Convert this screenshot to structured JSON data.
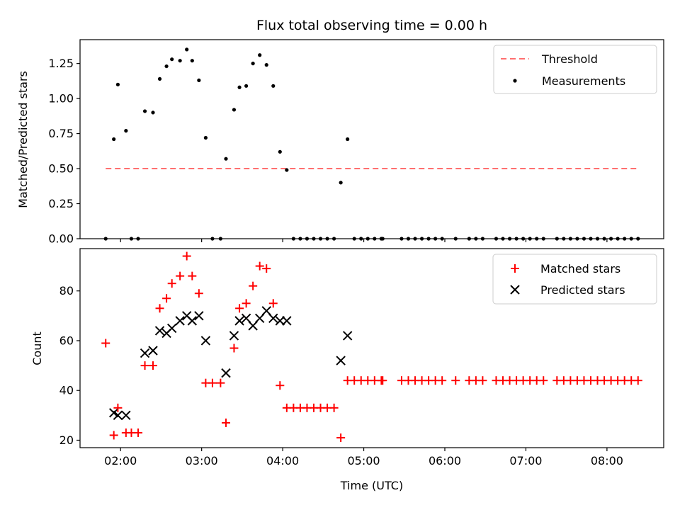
{
  "chart_data": [
    {
      "type": "scatter",
      "title": "Flux total observing time = 0.00 h",
      "xlabel": "",
      "ylabel": "Matched/Predicted stars",
      "xlim": [
        "01:30",
        "08:42"
      ],
      "ylim": [
        0,
        1.42
      ],
      "yticks": [
        "0.00",
        "0.25",
        "0.50",
        "0.75",
        "1.00",
        "1.25"
      ],
      "legend": {
        "position": "top-right",
        "entries": [
          "Threshold",
          "Measurements"
        ]
      },
      "colors": {
        "threshold": "#ff7070",
        "measurements": "#000000"
      },
      "threshold": {
        "name": "Threshold",
        "y": 0.5,
        "x_start": "01:49",
        "x_end": "08:24"
      },
      "series": [
        {
          "name": "Measurements",
          "points": [
            [
              "01:49",
              0.0
            ],
            [
              "01:55",
              0.71
            ],
            [
              "01:58",
              1.1
            ],
            [
              "02:04",
              0.77
            ],
            [
              "02:08",
              0.0
            ],
            [
              "02:13",
              0.0
            ],
            [
              "02:18",
              0.91
            ],
            [
              "02:24",
              0.9
            ],
            [
              "02:29",
              1.14
            ],
            [
              "02:34",
              1.23
            ],
            [
              "02:38",
              1.28
            ],
            [
              "02:44",
              1.27
            ],
            [
              "02:49",
              1.35
            ],
            [
              "02:53",
              1.27
            ],
            [
              "02:58",
              1.13
            ],
            [
              "03:03",
              0.72
            ],
            [
              "03:08",
              0.0
            ],
            [
              "03:14",
              0.0
            ],
            [
              "03:18",
              0.57
            ],
            [
              "03:24",
              0.92
            ],
            [
              "03:28",
              1.08
            ],
            [
              "03:33",
              1.09
            ],
            [
              "03:38",
              1.25
            ],
            [
              "03:43",
              1.31
            ],
            [
              "03:48",
              1.24
            ],
            [
              "03:53",
              1.09
            ],
            [
              "03:58",
              0.62
            ],
            [
              "04:03",
              0.49
            ],
            [
              "04:08",
              0.0
            ],
            [
              "04:13",
              0.0
            ],
            [
              "04:18",
              0.0
            ],
            [
              "04:23",
              0.0
            ],
            [
              "04:28",
              0.0
            ],
            [
              "04:33",
              0.0
            ],
            [
              "04:38",
              0.0
            ],
            [
              "04:43",
              0.4
            ],
            [
              "04:48",
              0.71
            ],
            [
              "04:53",
              0.0
            ],
            [
              "04:58",
              0.0
            ],
            [
              "05:03",
              0.0
            ],
            [
              "05:08",
              0.0
            ],
            [
              "05:13",
              0.0
            ],
            [
              "05:14",
              0.0
            ],
            [
              "05:28",
              0.0
            ],
            [
              "05:33",
              0.0
            ],
            [
              "05:38",
              0.0
            ],
            [
              "05:43",
              0.0
            ],
            [
              "05:48",
              0.0
            ],
            [
              "05:53",
              0.0
            ],
            [
              "05:58",
              0.0
            ],
            [
              "06:08",
              0.0
            ],
            [
              "06:18",
              0.0
            ],
            [
              "06:23",
              0.0
            ],
            [
              "06:28",
              0.0
            ],
            [
              "06:38",
              0.0
            ],
            [
              "06:43",
              0.0
            ],
            [
              "06:48",
              0.0
            ],
            [
              "06:53",
              0.0
            ],
            [
              "06:58",
              0.0
            ],
            [
              "07:03",
              0.0
            ],
            [
              "07:08",
              0.0
            ],
            [
              "07:13",
              0.0
            ],
            [
              "07:23",
              0.0
            ],
            [
              "07:28",
              0.0
            ],
            [
              "07:33",
              0.0
            ],
            [
              "07:38",
              0.0
            ],
            [
              "07:43",
              0.0
            ],
            [
              "07:48",
              0.0
            ],
            [
              "07:53",
              0.0
            ],
            [
              "07:58",
              0.0
            ],
            [
              "08:03",
              0.0
            ],
            [
              "08:08",
              0.0
            ],
            [
              "08:13",
              0.0
            ],
            [
              "08:18",
              0.0
            ],
            [
              "08:23",
              0.0
            ]
          ]
        }
      ]
    },
    {
      "type": "scatter",
      "title": "",
      "xlabel": "Time (UTC)",
      "ylabel": "Count",
      "xlim": [
        "01:30",
        "08:42"
      ],
      "ylim": [
        17,
        97
      ],
      "yticks": [
        "20",
        "40",
        "60",
        "80"
      ],
      "xticks": [
        "02:00",
        "03:00",
        "04:00",
        "05:00",
        "06:00",
        "07:00",
        "08:00"
      ],
      "legend": {
        "position": "top-right",
        "entries": [
          "Matched stars",
          "Predicted stars"
        ]
      },
      "colors": {
        "matched": "#ff0000",
        "predicted": "#000000"
      },
      "series": [
        {
          "name": "Matched stars",
          "points": [
            [
              "01:49",
              59
            ],
            [
              "01:55",
              22
            ],
            [
              "01:58",
              33
            ],
            [
              "02:04",
              23
            ],
            [
              "02:08",
              23
            ],
            [
              "02:13",
              23
            ],
            [
              "02:18",
              50
            ],
            [
              "02:24",
              50
            ],
            [
              "02:29",
              73
            ],
            [
              "02:34",
              77
            ],
            [
              "02:38",
              83
            ],
            [
              "02:44",
              86
            ],
            [
              "02:49",
              94
            ],
            [
              "02:53",
              86
            ],
            [
              "02:58",
              79
            ],
            [
              "03:03",
              43
            ],
            [
              "03:08",
              43
            ],
            [
              "03:14",
              43
            ],
            [
              "03:18",
              27
            ],
            [
              "03:24",
              57
            ],
            [
              "03:28",
              73
            ],
            [
              "03:33",
              75
            ],
            [
              "03:38",
              82
            ],
            [
              "03:43",
              90
            ],
            [
              "03:48",
              89
            ],
            [
              "03:53",
              75
            ],
            [
              "03:58",
              42
            ],
            [
              "04:03",
              33
            ],
            [
              "04:08",
              33
            ],
            [
              "04:13",
              33
            ],
            [
              "04:18",
              33
            ],
            [
              "04:23",
              33
            ],
            [
              "04:28",
              33
            ],
            [
              "04:33",
              33
            ],
            [
              "04:38",
              33
            ],
            [
              "04:43",
              21
            ],
            [
              "04:48",
              44
            ],
            [
              "04:53",
              44
            ],
            [
              "04:58",
              44
            ],
            [
              "05:03",
              44
            ],
            [
              "05:08",
              44
            ],
            [
              "05:13",
              44
            ],
            [
              "05:14",
              44
            ],
            [
              "05:28",
              44
            ],
            [
              "05:33",
              44
            ],
            [
              "05:38",
              44
            ],
            [
              "05:43",
              44
            ],
            [
              "05:48",
              44
            ],
            [
              "05:53",
              44
            ],
            [
              "05:58",
              44
            ],
            [
              "06:08",
              44
            ],
            [
              "06:18",
              44
            ],
            [
              "06:23",
              44
            ],
            [
              "06:28",
              44
            ],
            [
              "06:38",
              44
            ],
            [
              "06:43",
              44
            ],
            [
              "06:48",
              44
            ],
            [
              "06:53",
              44
            ],
            [
              "06:58",
              44
            ],
            [
              "07:03",
              44
            ],
            [
              "07:08",
              44
            ],
            [
              "07:13",
              44
            ],
            [
              "07:23",
              44
            ],
            [
              "07:28",
              44
            ],
            [
              "07:33",
              44
            ],
            [
              "07:38",
              44
            ],
            [
              "07:43",
              44
            ],
            [
              "07:48",
              44
            ],
            [
              "07:53",
              44
            ],
            [
              "07:58",
              44
            ],
            [
              "08:03",
              44
            ],
            [
              "08:08",
              44
            ],
            [
              "08:13",
              44
            ],
            [
              "08:18",
              44
            ],
            [
              "08:23",
              44
            ]
          ]
        },
        {
          "name": "Predicted stars",
          "points": [
            [
              "01:55",
              31
            ],
            [
              "01:58",
              30
            ],
            [
              "02:04",
              30
            ],
            [
              "02:18",
              55
            ],
            [
              "02:24",
              56
            ],
            [
              "02:29",
              64
            ],
            [
              "02:34",
              63
            ],
            [
              "02:38",
              65
            ],
            [
              "02:44",
              68
            ],
            [
              "02:49",
              70
            ],
            [
              "02:53",
              68
            ],
            [
              "02:58",
              70
            ],
            [
              "03:03",
              60
            ],
            [
              "03:18",
              47
            ],
            [
              "03:24",
              62
            ],
            [
              "03:28",
              68
            ],
            [
              "03:33",
              69
            ],
            [
              "03:38",
              66
            ],
            [
              "03:43",
              69
            ],
            [
              "03:48",
              72
            ],
            [
              "03:53",
              69
            ],
            [
              "03:58",
              68
            ],
            [
              "04:03",
              68
            ],
            [
              "04:43",
              52
            ],
            [
              "04:48",
              62
            ]
          ]
        }
      ]
    }
  ]
}
